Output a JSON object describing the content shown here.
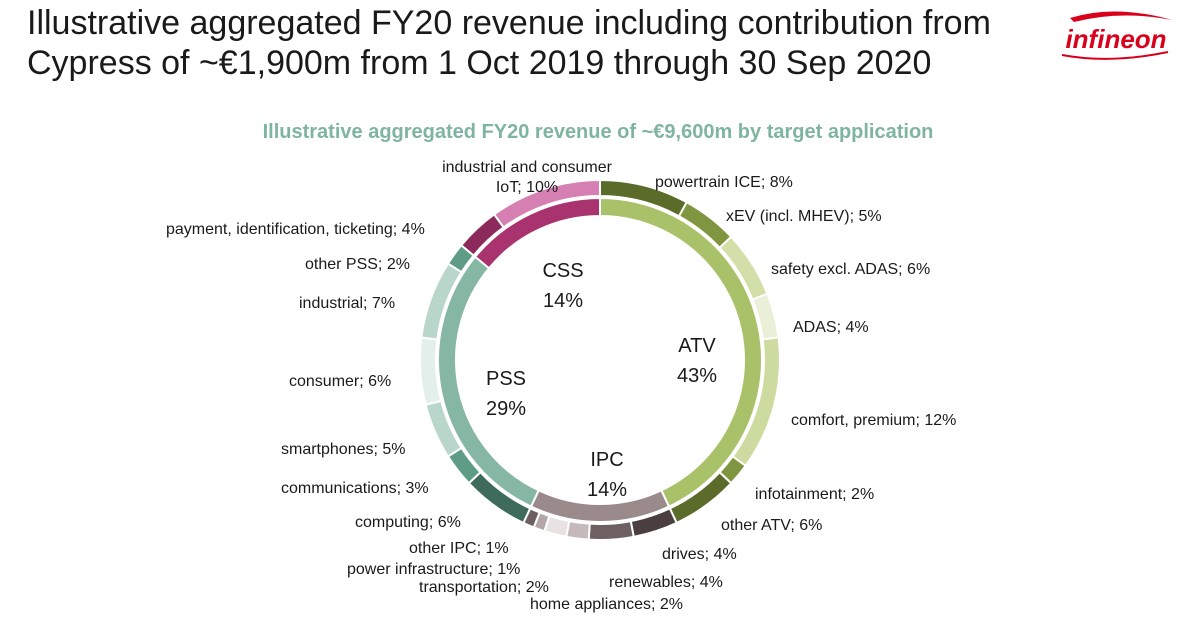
{
  "header": {
    "title_line1": "Illustrative aggregated FY20 revenue including contribution from",
    "title_line2": "Cypress of ~€1,900m from 1 Oct 2019 through 30 Sep 2020",
    "logo_text": "infineon"
  },
  "colors": {
    "logo": "#d9001b",
    "subtitle": "#7fb5a0"
  },
  "chart_data": {
    "type": "pie",
    "style": "double-ring donut",
    "title": "Illustrative aggregated FY20 revenue of ~€9,600m by target application",
    "inner_ring": [
      {
        "name": "ATV",
        "value_label": "43%",
        "value": 43,
        "color": "#a9c26a"
      },
      {
        "name": "IPC",
        "value_label": "14%",
        "value": 14,
        "color": "#9a8a8c"
      },
      {
        "name": "PSS",
        "value_label": "29%",
        "value": 29,
        "color": "#86b7a5"
      },
      {
        "name": "CSS",
        "value_label": "14%",
        "value": 14,
        "color": "#a9336f"
      }
    ],
    "outer_ring": [
      {
        "label": "powertrain ICE; 8%",
        "value": 8,
        "segment": "ATV",
        "color": "#5b6b2a"
      },
      {
        "label": "xEV (incl. MHEV); 5%",
        "value": 5,
        "segment": "ATV",
        "color": "#7f953f"
      },
      {
        "label": "safety excl. ADAS; 6%",
        "value": 6,
        "segment": "ATV",
        "color": "#d3dfa9"
      },
      {
        "label": "ADAS; 4%",
        "value": 4,
        "segment": "ATV",
        "color": "#eaf0d8"
      },
      {
        "label": "comfort, premium; 12%",
        "value": 12,
        "segment": "ATV",
        "color": "#cddba0"
      },
      {
        "label": "infotainment; 2%",
        "value": 2,
        "segment": "ATV",
        "color": "#7f953f"
      },
      {
        "label": "other ATV; 6%",
        "value": 6,
        "segment": "ATV",
        "color": "#5b6b2a"
      },
      {
        "label": "drives; 4%",
        "value": 4,
        "segment": "IPC",
        "color": "#4a3e40"
      },
      {
        "label": "renewables; 4%",
        "value": 4,
        "segment": "IPC",
        "color": "#6d5f62"
      },
      {
        "label": "home appliances; 2%",
        "value": 2,
        "segment": "IPC",
        "color": "#c6b9bb"
      },
      {
        "label": "transportation; 2%",
        "value": 2,
        "segment": "IPC",
        "color": "#e8e2e3"
      },
      {
        "label": "power infrastructure; 1%",
        "value": 1,
        "segment": "IPC",
        "color": "#b4a6a8"
      },
      {
        "label": "other IPC; 1%",
        "value": 1,
        "segment": "IPC",
        "color": "#6d5f62"
      },
      {
        "label": "computing; 6%",
        "value": 6,
        "segment": "PSS",
        "color": "#3e6b5b"
      },
      {
        "label": "communications; 3%",
        "value": 3,
        "segment": "PSS",
        "color": "#5f9c86"
      },
      {
        "label": "smartphones; 5%",
        "value": 5,
        "segment": "PSS",
        "color": "#b9d6ca"
      },
      {
        "label": "consumer; 6%",
        "value": 6,
        "segment": "PSS",
        "color": "#e3efea"
      },
      {
        "label": "industrial; 7%",
        "value": 7,
        "segment": "PSS",
        "color": "#b9d6ca"
      },
      {
        "label": "other PSS; 2%",
        "value": 2,
        "segment": "PSS",
        "color": "#5f9c86"
      },
      {
        "label": "payment, identification, ticketing; 4%",
        "value": 4,
        "segment": "CSS",
        "color": "#8c2b5b"
      },
      {
        "label": "industrial and consumer IoT; 10%",
        "label_lines": [
          "industrial and consumer",
          "IoT; 10%"
        ],
        "value": 10,
        "segment": "CSS",
        "color": "#d67fb2"
      }
    ]
  }
}
